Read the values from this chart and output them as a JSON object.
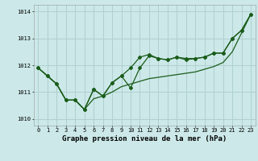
{
  "title": "Graphe pression niveau de la mer (hPa)",
  "bg_color": "#cce8e8",
  "grid_color": "#b0d0d0",
  "line_color": "#1a5c1a",
  "series1_y": [
    1011.9,
    1011.6,
    1011.3,
    1010.7,
    1010.7,
    1010.35,
    1010.75,
    1010.85,
    1011.0,
    1011.2,
    1011.3,
    1011.4,
    1011.5,
    1011.55,
    1011.6,
    1011.65,
    1011.7,
    1011.75,
    1011.85,
    1011.95,
    1012.1,
    1012.5,
    1013.2,
    1013.9
  ],
  "series2_y": [
    1011.9,
    1011.6,
    1011.3,
    1010.7,
    1010.7,
    1010.35,
    1011.1,
    1010.85,
    1011.35,
    1011.6,
    1011.15,
    1011.9,
    1012.35,
    1012.25,
    1012.2,
    1012.3,
    1012.2,
    1012.25,
    1012.3,
    1012.45,
    1012.45,
    1013.0,
    1013.3,
    1013.9
  ],
  "series3_y": [
    1011.9,
    1011.6,
    1011.3,
    1010.7,
    1010.7,
    1010.35,
    1011.1,
    1010.85,
    1011.35,
    1011.6,
    1011.9,
    1012.3,
    1012.4,
    1012.25,
    1012.2,
    1012.3,
    1012.25,
    1012.25,
    1012.3,
    1012.45,
    1012.45,
    1013.0,
    1013.3,
    1013.9
  ],
  "ylim": [
    1009.75,
    1014.25
  ],
  "yticks": [
    1010,
    1011,
    1012,
    1013,
    1014
  ],
  "xticks": [
    0,
    1,
    2,
    3,
    4,
    5,
    6,
    7,
    8,
    9,
    10,
    11,
    12,
    13,
    14,
    15,
    16,
    17,
    18,
    19,
    20,
    21,
    22,
    23
  ],
  "marker": "D",
  "markersize": 2.0,
  "linewidth": 0.9,
  "title_fontsize": 6.5,
  "tick_fontsize": 5.0
}
